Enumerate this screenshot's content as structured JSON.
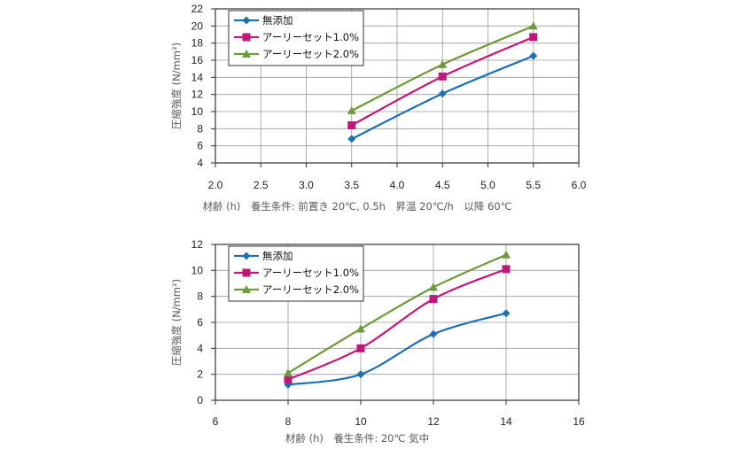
{
  "chart_data": [
    {
      "type": "line",
      "xlabel": "材齢 (h)　養生条件: 前置き 20℃, 0.5h　昇温 20℃/h　以降 60℃",
      "ylabel": "圧縮強度 (N/mm²)",
      "xlim": [
        2.0,
        6.0
      ],
      "ylim": [
        4,
        22
      ],
      "x_ticks": [
        "2.0",
        "2.5",
        "3.0",
        "3.5",
        "4.0",
        "4.5",
        "5.0",
        "5.5",
        "6.0"
      ],
      "y_ticks": [
        "4",
        "6",
        "8",
        "10",
        "12",
        "14",
        "16",
        "18",
        "20",
        "22"
      ],
      "grid": true,
      "legend_position": "top-left",
      "series": [
        {
          "name": "無添加",
          "color": "#1f6fb4",
          "marker": "diamond",
          "x": [
            3.5,
            4.5,
            5.5
          ],
          "y": [
            6.8,
            12.1,
            16.5
          ]
        },
        {
          "name": "アーリーセット1.0%",
          "color": "#c0177a",
          "marker": "square",
          "x": [
            3.5,
            4.5,
            5.5
          ],
          "y": [
            8.4,
            14.1,
            18.7
          ]
        },
        {
          "name": "アーリーセット2.0%",
          "color": "#6f9a3c",
          "marker": "triangle",
          "x": [
            3.5,
            4.5,
            5.5
          ],
          "y": [
            10.1,
            15.5,
            20.0
          ]
        }
      ]
    },
    {
      "type": "line",
      "xlabel": "材齢 (h)　養生条件: 20℃ 気中",
      "ylabel": "圧縮強度 (N/mm²)",
      "xlim": [
        6,
        16
      ],
      "ylim": [
        0,
        12
      ],
      "x_ticks": [
        "6",
        "8",
        "10",
        "12",
        "14",
        "16"
      ],
      "y_ticks": [
        "0",
        "2",
        "4",
        "6",
        "8",
        "10",
        "12"
      ],
      "grid": true,
      "legend_position": "top-left",
      "series": [
        {
          "name": "無添加",
          "color": "#1f6fb4",
          "marker": "diamond",
          "x": [
            8,
            10,
            12,
            14
          ],
          "y": [
            1.2,
            2.0,
            5.1,
            6.7
          ]
        },
        {
          "name": "アーリーセット1.0%",
          "color": "#c0177a",
          "marker": "square",
          "x": [
            8,
            10,
            12,
            14
          ],
          "y": [
            1.6,
            4.0,
            7.8,
            10.1
          ]
        },
        {
          "name": "アーリーセット2.0%",
          "color": "#6f9a3c",
          "marker": "triangle",
          "x": [
            8,
            10,
            12,
            14
          ],
          "y": [
            2.1,
            5.5,
            8.7,
            11.2
          ]
        }
      ]
    }
  ]
}
